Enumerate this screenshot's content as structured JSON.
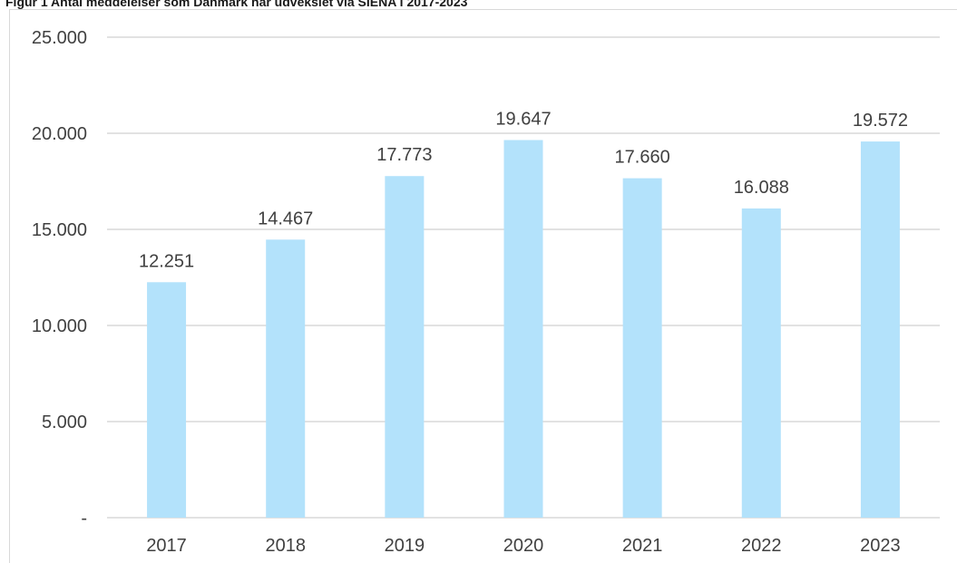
{
  "chart_data": {
    "type": "bar",
    "title": "Figur 1 Antal meddelelser som Danmark har udvekslet via SIENA i 2017-2023",
    "xlabel": "",
    "ylabel": "",
    "categories": [
      "2017",
      "2018",
      "2019",
      "2020",
      "2021",
      "2022",
      "2023"
    ],
    "values": [
      12251,
      14467,
      17773,
      19647,
      17660,
      16088,
      19572
    ],
    "value_labels": [
      "12.251",
      "14.467",
      "17.773",
      "19.647",
      "17.660",
      "16.088",
      "19.572"
    ],
    "ylim": [
      0,
      25000
    ],
    "yticks": [
      0,
      5000,
      10000,
      15000,
      20000,
      25000
    ],
    "ytick_labels": [
      "-",
      "5.000",
      "10.000",
      "15.000",
      "20.000",
      "25.000"
    ],
    "grid": true,
    "legend": "none",
    "bar_color": "#b3e2fb",
    "grid_color": "#d9d9d9",
    "text_color": "#404040"
  }
}
